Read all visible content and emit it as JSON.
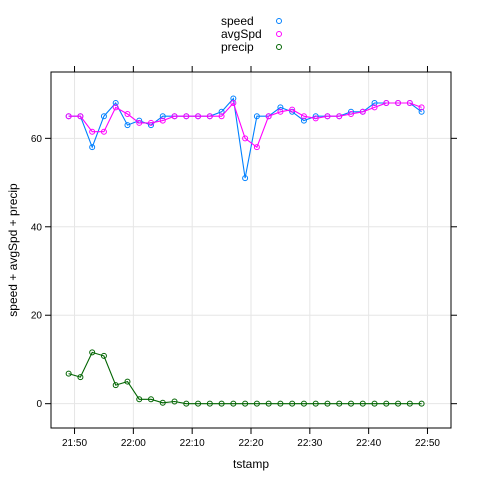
{
  "chart_data": {
    "type": "line",
    "xlabel": "tstamp",
    "ylabel": "speed + avgSpd + precip",
    "x_ticks": [
      "21:50",
      "22:00",
      "22:10",
      "22:20",
      "22:30",
      "22:40",
      "22:50"
    ],
    "x_tick_minutes": [
      0,
      10,
      20,
      30,
      40,
      50,
      60
    ],
    "xlim_minutes": [
      -4,
      64
    ],
    "x_origin": "21:50",
    "y_ticks": [
      0,
      20,
      40,
      60
    ],
    "ylim": [
      -5.5,
      75
    ],
    "grid": true,
    "legend_position": "top",
    "series": [
      {
        "name": "speed",
        "color": "#0080ff",
        "x": [
          "21:49",
          "21:51",
          "21:53",
          "21:55",
          "21:57",
          "21:59",
          "22:01",
          "22:03",
          "22:05",
          "22:07",
          "22:09",
          "22:11",
          "22:13",
          "22:15",
          "22:17",
          "22:19",
          "22:21",
          "22:23",
          "22:25",
          "22:27",
          "22:29",
          "22:31",
          "22:33",
          "22:35",
          "22:37",
          "22:39",
          "22:41",
          "22:43",
          "22:45",
          "22:47",
          "22:49"
        ],
        "values": [
          65,
          65,
          58,
          65,
          68,
          63,
          64,
          63,
          65,
          65,
          65,
          65,
          65,
          66,
          69,
          51,
          65,
          65,
          67,
          66,
          64,
          65,
          65,
          65,
          66,
          66,
          68,
          68,
          68,
          68,
          66
        ]
      },
      {
        "name": "avgSpd",
        "color": "#ff00ff",
        "x": [
          "21:49",
          "21:51",
          "21:53",
          "21:55",
          "21:57",
          "21:59",
          "22:01",
          "22:03",
          "22:05",
          "22:07",
          "22:09",
          "22:11",
          "22:13",
          "22:15",
          "22:17",
          "22:19",
          "22:21",
          "22:23",
          "22:25",
          "22:27",
          "22:29",
          "22:31",
          "22:33",
          "22:35",
          "22:37",
          "22:39",
          "22:41",
          "22:43",
          "22:45",
          "22:47",
          "22:49"
        ],
        "values": [
          65,
          65,
          61.5,
          61.5,
          67,
          65.5,
          63.5,
          63.5,
          64,
          65,
          65,
          65,
          65,
          65,
          68,
          60,
          58,
          65,
          66,
          66.5,
          65,
          64.5,
          65,
          65,
          65.5,
          66,
          67,
          68,
          68,
          68,
          67
        ]
      },
      {
        "name": "precip",
        "color": "#006400",
        "x": [
          "21:49",
          "21:51",
          "21:53",
          "21:55",
          "21:57",
          "21:59",
          "22:01",
          "22:03",
          "22:05",
          "22:07",
          "22:09",
          "22:11",
          "22:13",
          "22:15",
          "22:17",
          "22:19",
          "22:21",
          "22:23",
          "22:25",
          "22:27",
          "22:29",
          "22:31",
          "22:33",
          "22:35",
          "22:37",
          "22:39",
          "22:41",
          "22:43",
          "22:45",
          "22:47",
          "22:49"
        ],
        "values": [
          6.8,
          6.0,
          11.6,
          10.8,
          4.2,
          5.0,
          1.0,
          1.0,
          0.2,
          0.5,
          0,
          0,
          0,
          0,
          0,
          0,
          0,
          0,
          0,
          0,
          0,
          0,
          0,
          0,
          0,
          0,
          0,
          0,
          0,
          0,
          0
        ]
      }
    ]
  }
}
